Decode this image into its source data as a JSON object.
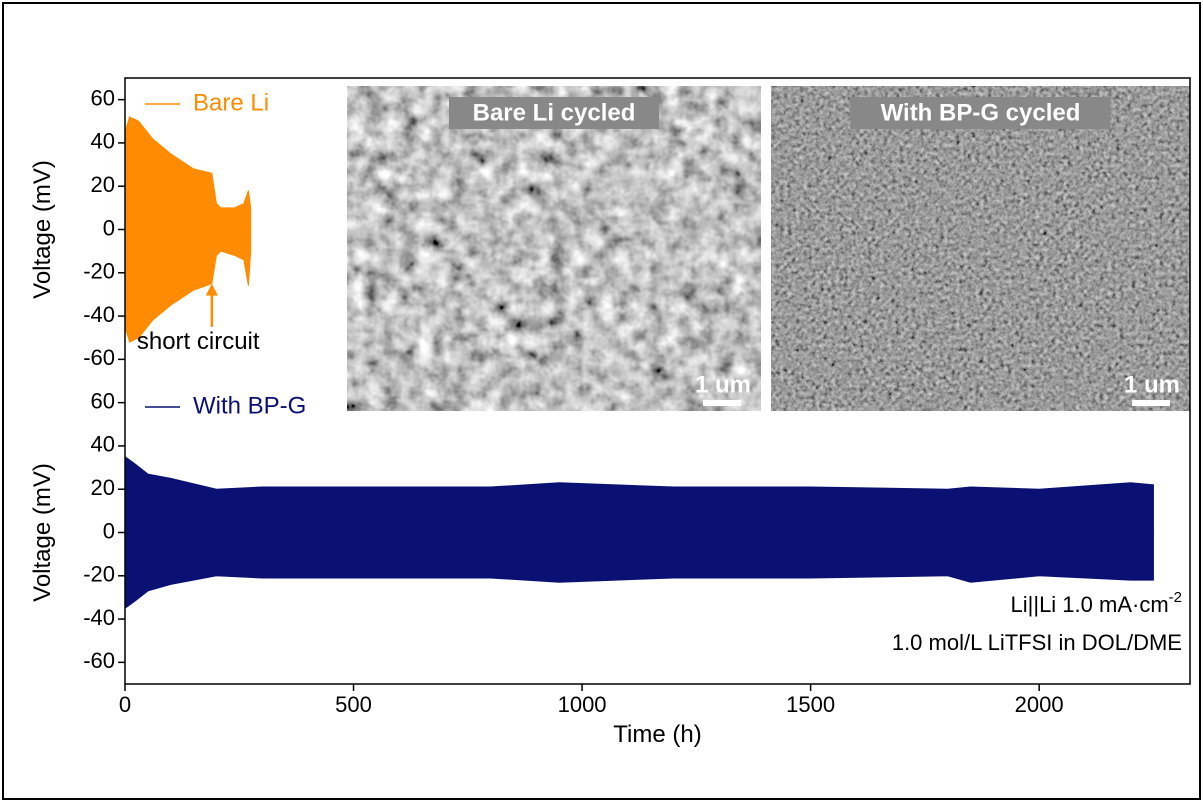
{
  "chart_data": [
    {
      "type": "band",
      "legend": "upper left",
      "ylabel": "Voltage (mV)",
      "xlim": [
        0,
        2330
      ],
      "ylim": [
        -70,
        70
      ],
      "yticks": [
        -60,
        -40,
        -20,
        0,
        20,
        40,
        60
      ],
      "series": [
        {
          "name": "Bare Li",
          "color": "#ff8c00",
          "x": [
            0,
            10,
            30,
            60,
            100,
            150,
            190,
            200,
            210,
            240,
            260,
            270,
            275
          ],
          "upper": [
            45,
            52,
            50,
            42,
            35,
            28,
            26,
            12,
            10,
            10,
            12,
            18,
            10
          ],
          "lower": [
            -45,
            -52,
            -50,
            -42,
            -35,
            -28,
            -25,
            -12,
            -10,
            -12,
            -14,
            -26,
            -10
          ]
        }
      ],
      "annotations": [
        {
          "text": "short circuit",
          "x": 190,
          "y": -45,
          "y_to": -25
        }
      ],
      "insets": [
        {
          "label": "Bare Li cycled",
          "scale_label": "1 um"
        },
        {
          "label": "With BP-G cycled",
          "scale_label": "1 um"
        }
      ]
    },
    {
      "type": "band",
      "legend": "upper left",
      "ylabel": "Voltage (mV)",
      "xlabel": "Time (h)",
      "xlim": [
        0,
        2330
      ],
      "ylim": [
        -70,
        70
      ],
      "yticks": [
        -60,
        -40,
        -20,
        0,
        20,
        40,
        60
      ],
      "xticks": [
        0,
        500,
        1000,
        1500,
        2000
      ],
      "series": [
        {
          "name": "With BP-G",
          "color": "#0a1172",
          "x": [
            0,
            20,
            50,
            100,
            200,
            300,
            500,
            800,
            950,
            1200,
            1500,
            1800,
            1850,
            2000,
            2200,
            2250
          ],
          "upper": [
            35,
            32,
            27,
            25,
            20,
            21,
            21,
            21,
            23,
            21,
            21,
            20,
            21,
            20,
            23,
            22
          ],
          "lower": [
            -35,
            -32,
            -27,
            -24,
            -20,
            -21,
            -21,
            -21,
            -23,
            -21,
            -21,
            -20,
            -23,
            -20,
            -22,
            -22
          ]
        }
      ],
      "notes": [
        [
          "Li||Li 1.0 mA·cm",
          "-2"
        ],
        [
          "1.0 mol/L LiTFSI in DOL/DME"
        ]
      ]
    }
  ]
}
